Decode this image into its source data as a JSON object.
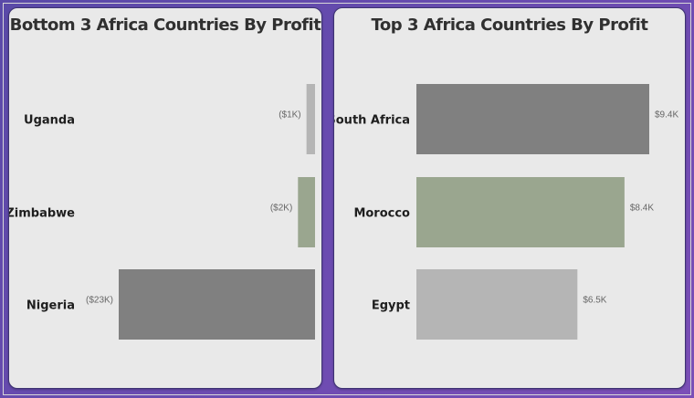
{
  "chart_data": [
    {
      "type": "bar",
      "orientation": "horizontal",
      "title": "Bottom 3 Africa Countries By Profit",
      "categories": [
        "Uganda",
        "Zimbabwe",
        "Nigeria"
      ],
      "values": [
        -1,
        -2,
        -23
      ],
      "value_labels": [
        "($1K)",
        "($2K)",
        "($23K)"
      ],
      "unit": "K",
      "colors": [
        "#b5b5b5",
        "#9aa68f",
        "#808080"
      ]
    },
    {
      "type": "bar",
      "orientation": "horizontal",
      "title": "Top 3 Africa Countries By Profit",
      "categories": [
        "South Africa",
        "Morocco",
        "Egypt"
      ],
      "values": [
        9.4,
        8.4,
        6.5
      ],
      "value_labels": [
        "$9.4K",
        "$8.4K",
        "$6.5K"
      ],
      "unit": "K",
      "colors": [
        "#808080",
        "#9aa68f",
        "#b5b5b5"
      ]
    }
  ]
}
